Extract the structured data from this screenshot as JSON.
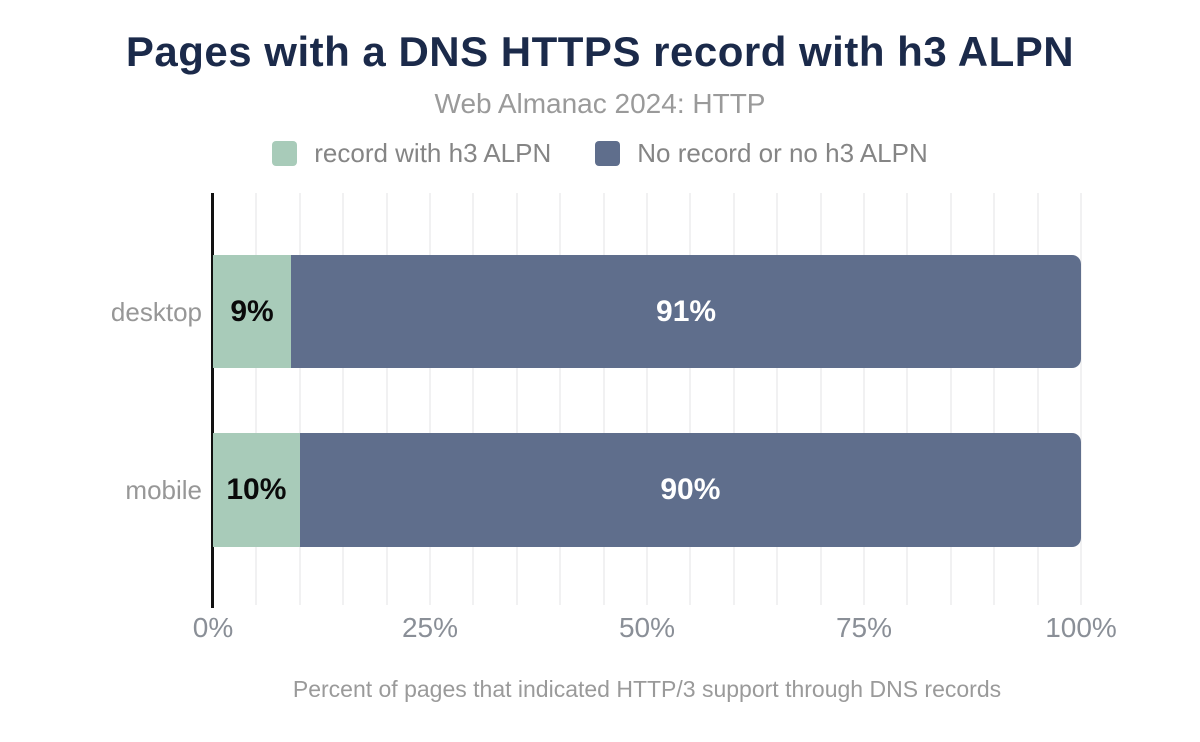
{
  "header": {
    "title": "Pages with a DNS HTTPS record with h3 ALPN",
    "subtitle": "Web Almanac 2024: HTTP"
  },
  "legend": [
    {
      "name": "record with h3 ALPN",
      "color": "#a8cbb9"
    },
    {
      "name": "No record or no h3 ALPN",
      "color": "#5f6e8c"
    }
  ],
  "chart_data": {
    "type": "bar",
    "orientation": "horizontal",
    "stacked": true,
    "title": "Pages with a DNS HTTPS record with h3 ALPN",
    "subtitle": "Web Almanac 2024: HTTP",
    "categories": [
      "desktop",
      "mobile"
    ],
    "series": [
      {
        "name": "record with h3 ALPN",
        "color": "#a8cbb9",
        "values": [
          9,
          10
        ],
        "data_labels": [
          "9%",
          "10%"
        ]
      },
      {
        "name": "No record or no h3 ALPN",
        "color": "#5f6e8c",
        "values": [
          91,
          90
        ],
        "data_labels": [
          "91%",
          "90%"
        ]
      }
    ],
    "x_axis": {
      "range": [
        0,
        100
      ],
      "tick_labels": [
        "0%",
        "25%",
        "50%",
        "75%",
        "100%"
      ],
      "tick_values": [
        0,
        25,
        50,
        75,
        100
      ],
      "minor_gridline_step": 5,
      "grid": true
    },
    "xlabel": "Percent of pages that indicated HTTP/3 support through DNS records",
    "legend_position": "top",
    "colors": {
      "title_text": "#1b2a4a",
      "muted_text": "#9a9a9a",
      "gridline": "#f1f1f2",
      "axis_line": "#111111",
      "label_on_light": "#0a0a0a",
      "label_on_dark": "#ffffff"
    }
  },
  "footer": {
    "caption": "Percent of pages that indicated HTTP/3 support through DNS records"
  }
}
